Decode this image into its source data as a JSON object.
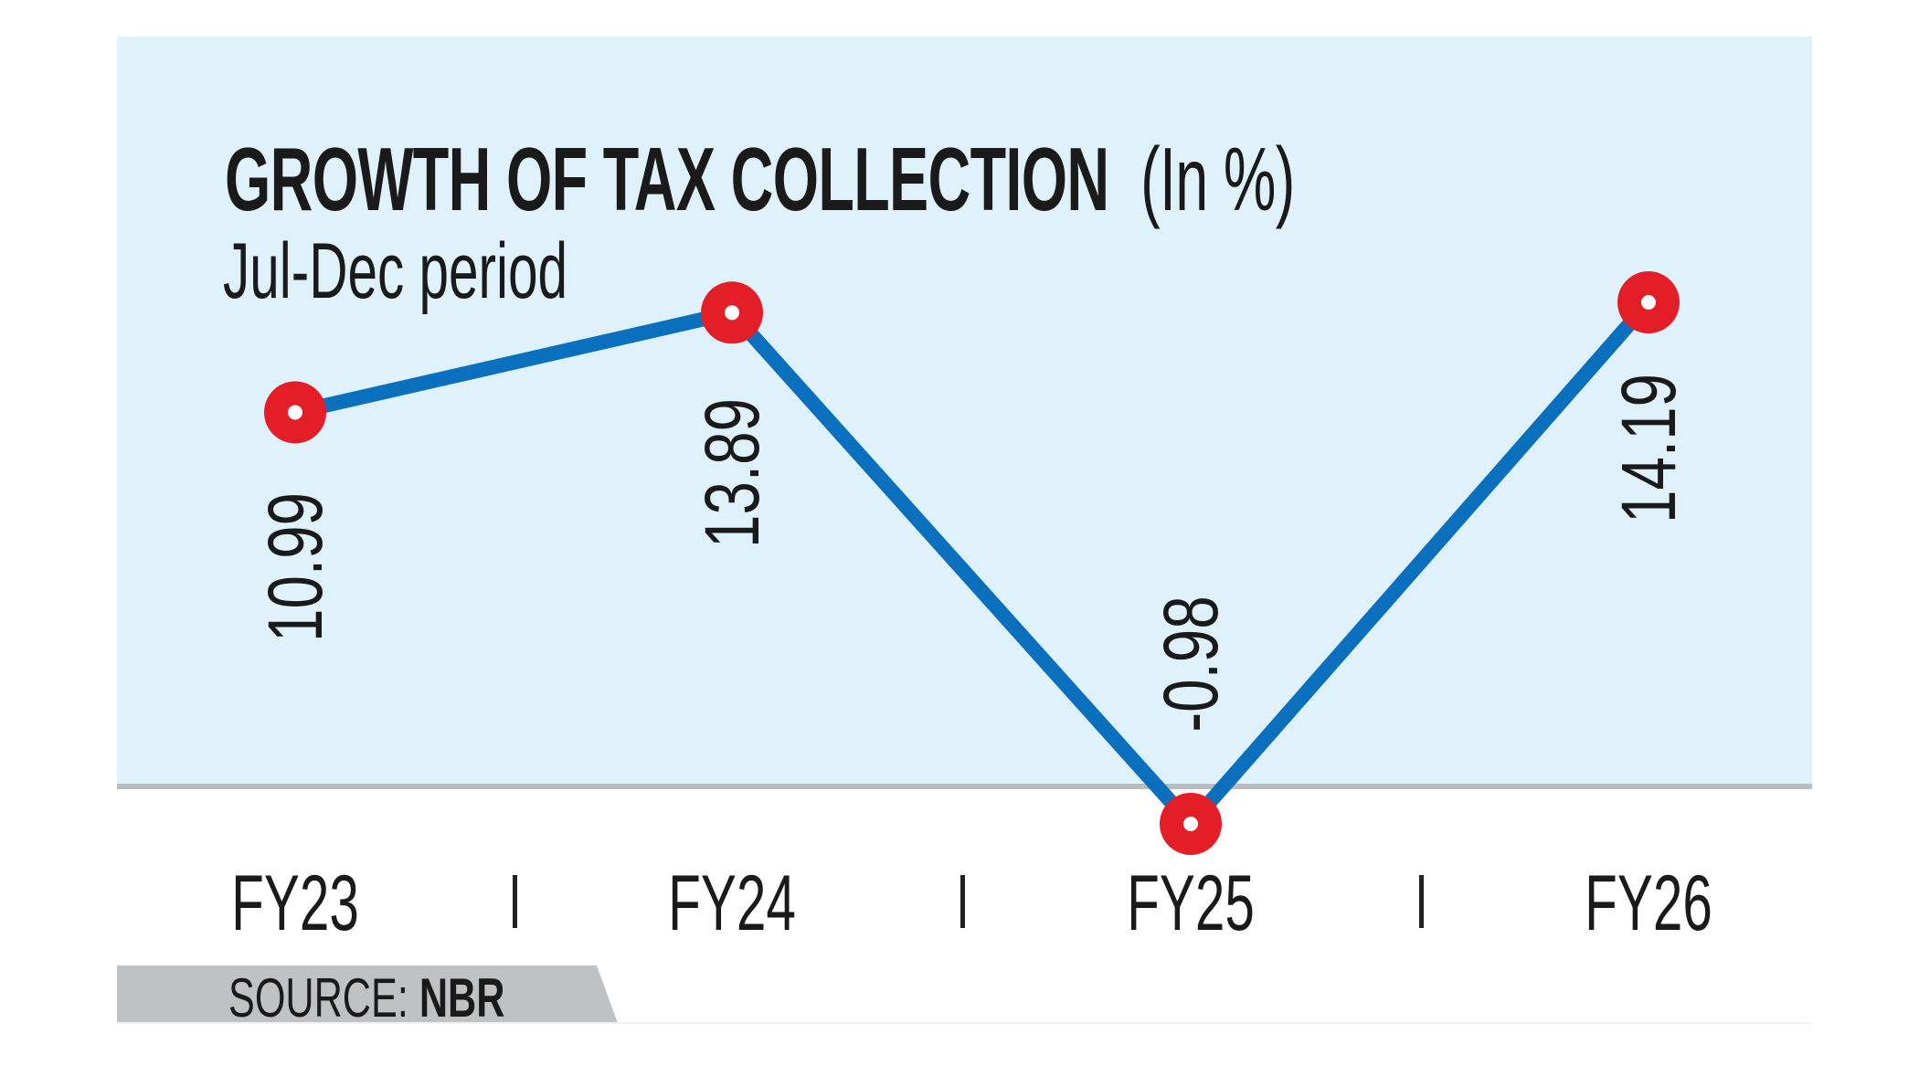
{
  "chart_data": {
    "type": "line",
    "title": "GROWTH OF TAX COLLECTION",
    "unit_label": "(In %)",
    "subtitle": "Jul-Dec period",
    "categories": [
      "FY23",
      "FY24",
      "FY25",
      "FY26"
    ],
    "values": [
      10.99,
      13.89,
      -0.98,
      14.19
    ],
    "value_labels": [
      "10.99",
      "13.89",
      "-0.98",
      "14.19"
    ],
    "grid": false,
    "colors": {
      "line": "#0a6fbd",
      "marker": "#e41e26",
      "background": "#dff1fb",
      "baseline": "#b9bcc0"
    }
  },
  "source": {
    "prefix": "SOURCE:",
    "name": "NBR"
  }
}
